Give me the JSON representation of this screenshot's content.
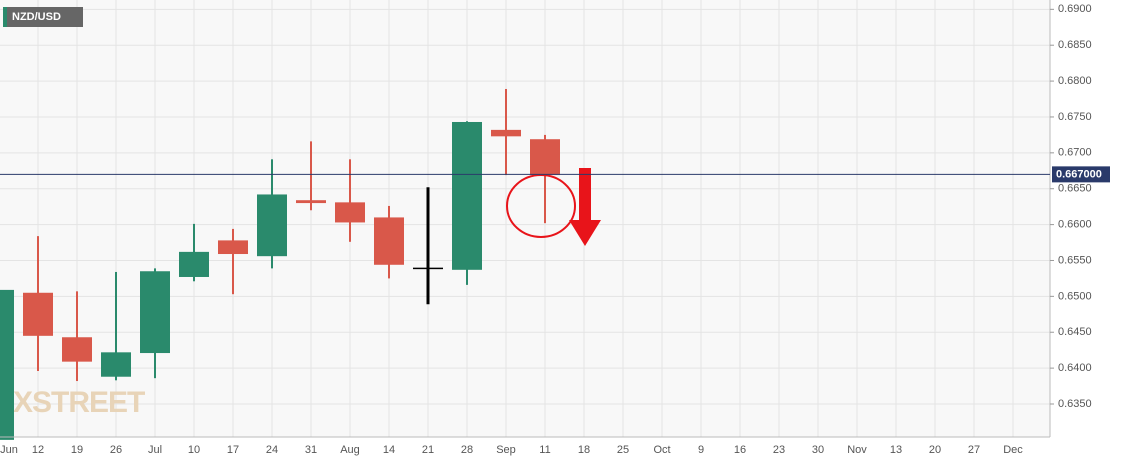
{
  "chart_data": {
    "type": "candlestick",
    "title": "NZD/USD",
    "watermark": "FXSTREET",
    "categories": [
      "Jun",
      "12",
      "19",
      "26",
      "Jul",
      "10",
      "17",
      "24",
      "31",
      "Aug",
      "14",
      "21",
      "28",
      "Sep",
      "11",
      "18",
      "25",
      "Oct",
      "9",
      "16",
      "23",
      "30",
      "Nov",
      "13",
      "20",
      "27",
      "Dec"
    ],
    "open": [
      0.63,
      0.6505,
      0.6443,
      0.6388,
      0.6421,
      0.6527,
      0.6578,
      0.6556,
      0.6634,
      0.6631,
      0.661,
      0.654,
      0.6537,
      0.6732,
      0.6719,
      null,
      null,
      null,
      null,
      null,
      null,
      null,
      null,
      null,
      null,
      null,
      null
    ],
    "high": [
      0.6528,
      0.6584,
      0.6507,
      0.6534,
      0.6539,
      0.6601,
      0.6594,
      0.6691,
      0.6716,
      0.6691,
      0.6626,
      0.6652,
      0.6744,
      0.6789,
      0.6725,
      null,
      null,
      null,
      null,
      null,
      null,
      null,
      null,
      null,
      null,
      null,
      null
    ],
    "low": [
      0.629,
      0.6396,
      0.6382,
      0.6383,
      0.6386,
      0.6521,
      0.6503,
      0.6539,
      0.662,
      0.6576,
      0.6525,
      0.6489,
      0.6516,
      0.6669,
      0.6602,
      null,
      null,
      null,
      null,
      null,
      null,
      null,
      null,
      null,
      null,
      null,
      null
    ],
    "close": [
      0.6509,
      0.6445,
      0.6409,
      0.6422,
      0.6535,
      0.6562,
      0.6559,
      0.6642,
      0.663,
      0.6603,
      0.6544,
      0.6539,
      0.6743,
      0.6723,
      0.6669,
      null,
      null,
      null,
      null,
      null,
      null,
      null,
      null,
      null,
      null,
      null,
      null
    ],
    "colors": [
      "#2a8a6c",
      "#d9584a",
      "#d9584a",
      "#2a8a6c",
      "#2a8a6c",
      "#2a8a6c",
      "#d9584a",
      "#2a8a6c",
      "#d9584a",
      "#d9584a",
      "#d9584a",
      "#000000",
      "#2a8a6c",
      "#d9584a",
      "#d9584a",
      null,
      null,
      null,
      null,
      null,
      null,
      null,
      null,
      null,
      null,
      null,
      null
    ],
    "ylim": [
      0.6304,
      0.6913
    ],
    "yticks": [
      {
        "value": 0.635,
        "label": "0.6350"
      },
      {
        "value": 0.64,
        "label": "0.6400"
      },
      {
        "value": 0.645,
        "label": "0.6450"
      },
      {
        "value": 0.65,
        "label": "0.6500"
      },
      {
        "value": 0.655,
        "label": "0.6550"
      },
      {
        "value": 0.66,
        "label": "0.6600"
      },
      {
        "value": 0.665,
        "label": "0.6650"
      },
      {
        "value": 0.67,
        "label": "0.6700"
      },
      {
        "value": 0.675,
        "label": "0.6750"
      },
      {
        "value": 0.68,
        "label": "0.6800"
      },
      {
        "value": 0.685,
        "label": "0.6850"
      },
      {
        "value": 0.69,
        "label": "0.6900"
      }
    ],
    "current_price": {
      "value": 0.667,
      "label": "0.667000"
    },
    "grid": true
  }
}
